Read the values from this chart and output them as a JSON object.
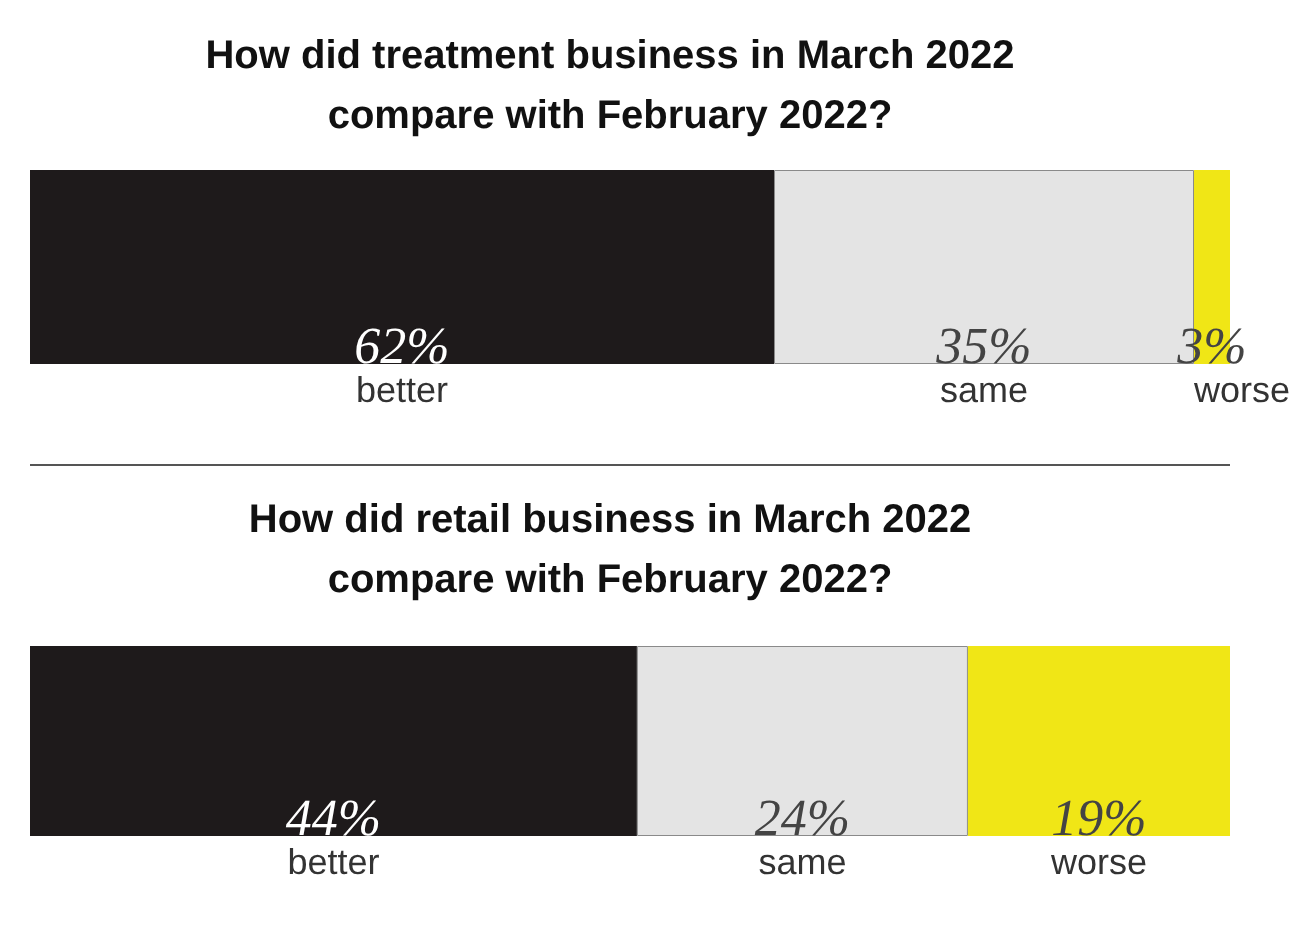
{
  "chart_data": [
    {
      "type": "bar",
      "title": "How did treatment business in March 2022\ncompare with February 2022?",
      "categories": [
        null
      ],
      "orientation": "horizontal",
      "stacked": true,
      "series": [
        {
          "name": "better",
          "color": "#1e1a1b",
          "values": [
            62
          ],
          "value_labels": [
            "62%"
          ]
        },
        {
          "name": "same",
          "color": "#e4e4e4",
          "values": [
            35
          ],
          "value_labels": [
            "35%"
          ]
        },
        {
          "name": "worse",
          "color": "#f0e616",
          "values": [
            3
          ],
          "value_labels": [
            "3%"
          ]
        }
      ]
    },
    {
      "type": "bar",
      "title": "How did retail business in March 2022\ncompare with February 2022?",
      "categories": [
        null
      ],
      "orientation": "horizontal",
      "stacked": true,
      "series": [
        {
          "name": "better",
          "color": "#1e1a1b",
          "values": [
            44
          ],
          "value_labels": [
            "44%"
          ]
        },
        {
          "name": "same",
          "color": "#e4e4e4",
          "values": [
            24
          ],
          "value_labels": [
            "24%"
          ]
        },
        {
          "name": "worse",
          "color": "#f0e616",
          "values": [
            19
          ],
          "value_labels": [
            "19%"
          ]
        }
      ]
    }
  ]
}
